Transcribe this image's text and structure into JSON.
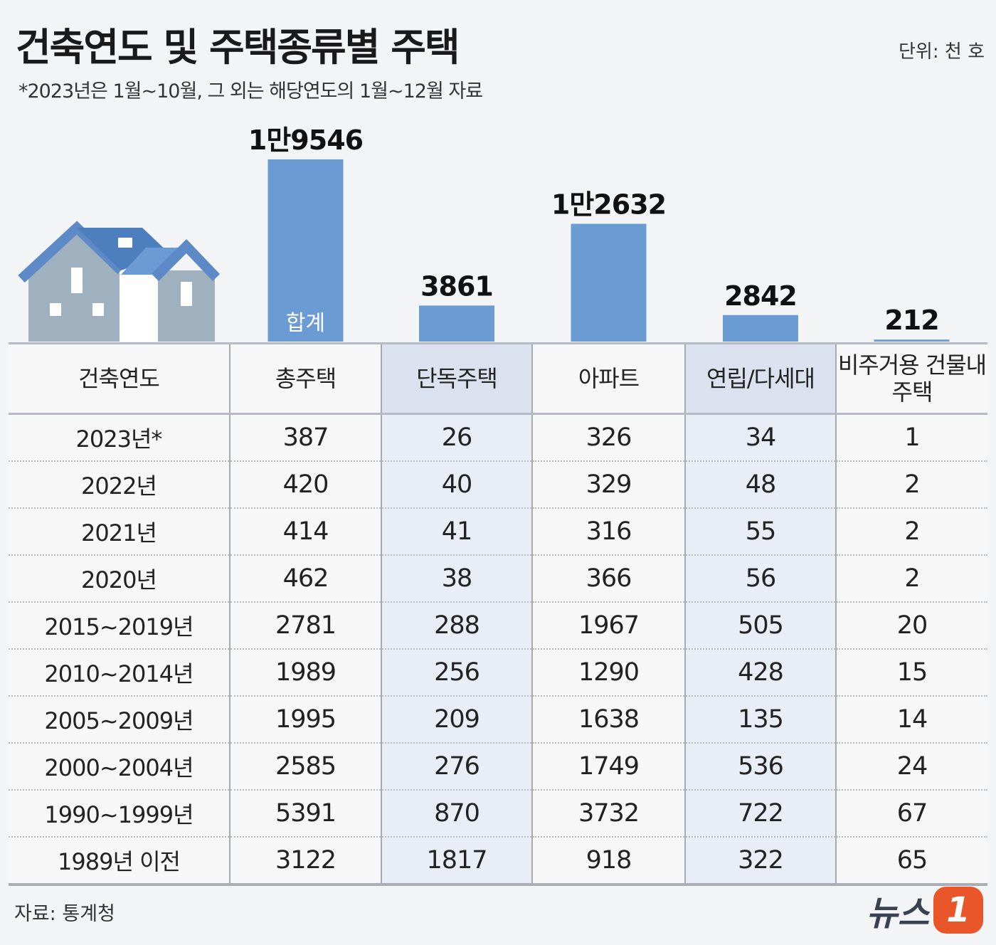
{
  "chart_data": {
    "type": "bar",
    "title": "건축연도 및 주택종류별 주택",
    "subtitle": "*2023년은 1월~10월, 그 외는 해당연도의 1월~12월 자료",
    "unit": "단위: 천 호",
    "annotation": "합계",
    "categories": [
      "총주택",
      "단독주택",
      "아파트",
      "연립/다세대",
      "비주거용 건물내주택"
    ],
    "values": [
      19546,
      3861,
      12632,
      2842,
      212
    ],
    "value_labels": [
      "1만9546",
      "3861",
      "1만2632",
      "2842",
      "212"
    ],
    "color": "#6a9bd2",
    "ylim": [
      0,
      20000
    ]
  },
  "table": {
    "corner": "건축연도",
    "rows": [
      {
        "label": "2023년*",
        "values": [
          387,
          26,
          326,
          34,
          1
        ]
      },
      {
        "label": "2022년",
        "values": [
          420,
          40,
          329,
          48,
          2
        ]
      },
      {
        "label": "2021년",
        "values": [
          414,
          41,
          316,
          55,
          2
        ]
      },
      {
        "label": "2020년",
        "values": [
          462,
          38,
          366,
          56,
          2
        ]
      },
      {
        "label": "2015~2019년",
        "values": [
          2781,
          288,
          1967,
          505,
          20
        ]
      },
      {
        "label": "2010~2014년",
        "values": [
          1989,
          256,
          1290,
          428,
          15
        ]
      },
      {
        "label": "2005~2009년",
        "values": [
          1995,
          209,
          1638,
          135,
          14
        ]
      },
      {
        "label": "2000~2004년",
        "values": [
          2585,
          276,
          1749,
          536,
          24
        ]
      },
      {
        "label": "1990~1999년",
        "values": [
          5391,
          870,
          3732,
          722,
          67
        ]
      },
      {
        "label": "1989년 이전",
        "values": [
          3122,
          1817,
          918,
          322,
          65
        ]
      }
    ]
  },
  "footer": {
    "source": "자료: 통계청",
    "logo": [
      "뉴스",
      "1"
    ]
  }
}
